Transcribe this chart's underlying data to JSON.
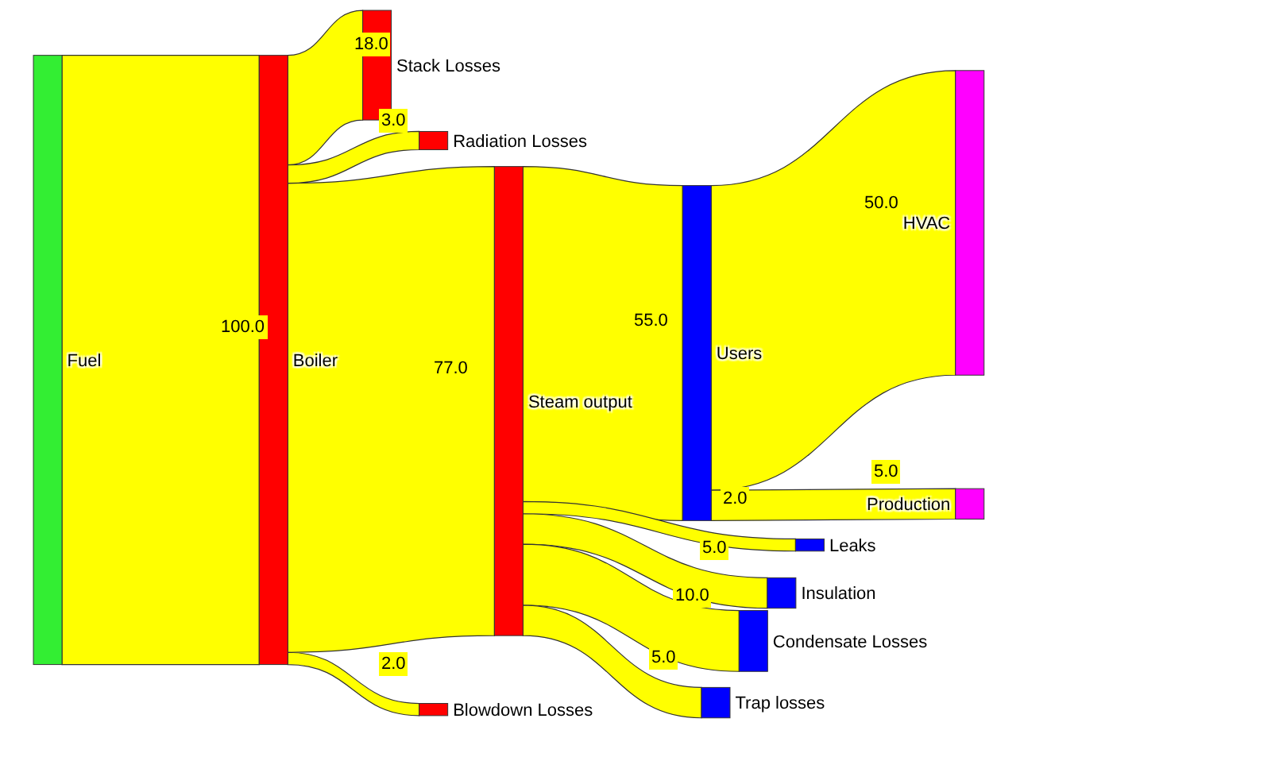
{
  "chart_data": {
    "type": "other",
    "categories": [
      "Fuel",
      "Boiler",
      "Steam output",
      "Users",
      "HVAC",
      "Production",
      "Stack Losses",
      "Radiation Losses",
      "Blowdown Losses",
      "Leaks",
      "Insulation",
      "Condensate Losses",
      "Trap losses"
    ],
    "colors": [
      "#33ee33",
      "#ff0000",
      "#ff0000",
      "#0000ff",
      "#ff00ff",
      "#ff00ff",
      "#ff0000",
      "#ff0000",
      "#ff0000",
      "#0000ff",
      "#0000ff",
      "#0000ff",
      "#0000ff"
    ],
    "series": [
      {
        "color": "#ffff00",
        "values": [
          null,
          100,
          null,
          null,
          null,
          null,
          null,
          null,
          null,
          null,
          null,
          null,
          null
        ],
        "value_labels": [
          null,
          "100.0",
          null,
          null,
          null,
          null,
          null,
          null,
          null,
          null,
          null,
          null,
          null
        ]
      },
      {
        "color": "#ffff00",
        "values": [
          null,
          null,
          77,
          null,
          null,
          null,
          18,
          3,
          2,
          null,
          null,
          null,
          null
        ],
        "value_labels": [
          null,
          null,
          "77.0",
          null,
          null,
          null,
          "18.0",
          "3.0",
          "2.0",
          null,
          null,
          null,
          null
        ]
      },
      {
        "color": "#ffff00",
        "values": [
          null,
          null,
          null,
          55,
          null,
          null,
          null,
          null,
          null,
          2,
          5,
          10,
          5
        ],
        "value_labels": [
          null,
          null,
          null,
          "55.0",
          null,
          null,
          null,
          null,
          null,
          "2.0",
          "5.0",
          "10.0",
          "5.0"
        ]
      },
      {
        "color": "#ffff00",
        "values": [
          null,
          null,
          null,
          null,
          50,
          5,
          null,
          null,
          null,
          null,
          null,
          null,
          null
        ],
        "value_labels": [
          null,
          null,
          null,
          null,
          "50.0",
          "5.0",
          null,
          null,
          null,
          null,
          null,
          null,
          null
        ]
      }
    ]
  }
}
